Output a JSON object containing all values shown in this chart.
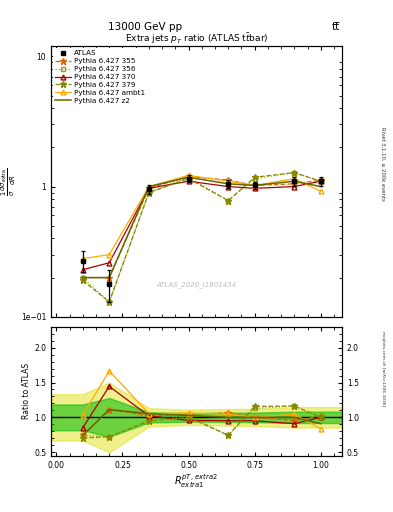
{
  "title_top": "13000 GeV pp",
  "title_right": "tt̅",
  "plot_title": "Extra jets $p_T$ ratio (ATLAS t$\\bar{t}$bar)",
  "xlabel_math": "$R^{pT,\\,extra2}_{extra1}$",
  "watermark": "ATLAS_2020_I1801434",
  "rivet_label": "Rivet 3.1.10, ≥ 200k events",
  "arxiv_label": "mcplots.cern.ch [arXiv:1306.3436]",
  "x": [
    0.1,
    0.2,
    0.35,
    0.5,
    0.65,
    0.75,
    0.9,
    1.0
  ],
  "atlas_y": [
    0.27,
    0.18,
    0.95,
    1.15,
    1.05,
    1.02,
    1.1,
    1.1
  ],
  "atlas_yerr": [
    0.05,
    0.05,
    0.07,
    0.07,
    0.07,
    0.07,
    0.09,
    0.09
  ],
  "p355_y": [
    0.2,
    0.2,
    0.97,
    1.2,
    1.12,
    1.02,
    1.05,
    1.12
  ],
  "p356_y": [
    0.2,
    0.13,
    0.9,
    1.18,
    0.78,
    1.15,
    1.28,
    1.1
  ],
  "p370_y": [
    0.23,
    0.26,
    0.97,
    1.1,
    1.0,
    0.97,
    1.0,
    1.1
  ],
  "p379_y": [
    0.19,
    0.13,
    0.9,
    1.15,
    0.78,
    1.18,
    1.28,
    1.1
  ],
  "pambt1_y": [
    0.28,
    0.3,
    1.0,
    1.22,
    1.1,
    1.02,
    1.15,
    0.92
  ],
  "pz2_y": [
    0.2,
    0.2,
    1.0,
    1.18,
    1.05,
    1.02,
    1.1,
    1.0
  ],
  "color_atlas": "#000000",
  "color_p355": "#dd6600",
  "color_p356": "#88aa00",
  "color_p370": "#aa0000",
  "color_p379": "#888800",
  "color_pambt1": "#ffaa00",
  "color_pz2": "#666600",
  "band_inner_color": "#00bb00",
  "band_outer_color": "#dddd00",
  "band_inner_alpha": 0.55,
  "band_outer_alpha": 0.45,
  "ylim_main": [
    0.1,
    12.0
  ],
  "ylim_ratio": [
    0.45,
    2.3
  ],
  "xlim": [
    -0.02,
    1.08
  ]
}
